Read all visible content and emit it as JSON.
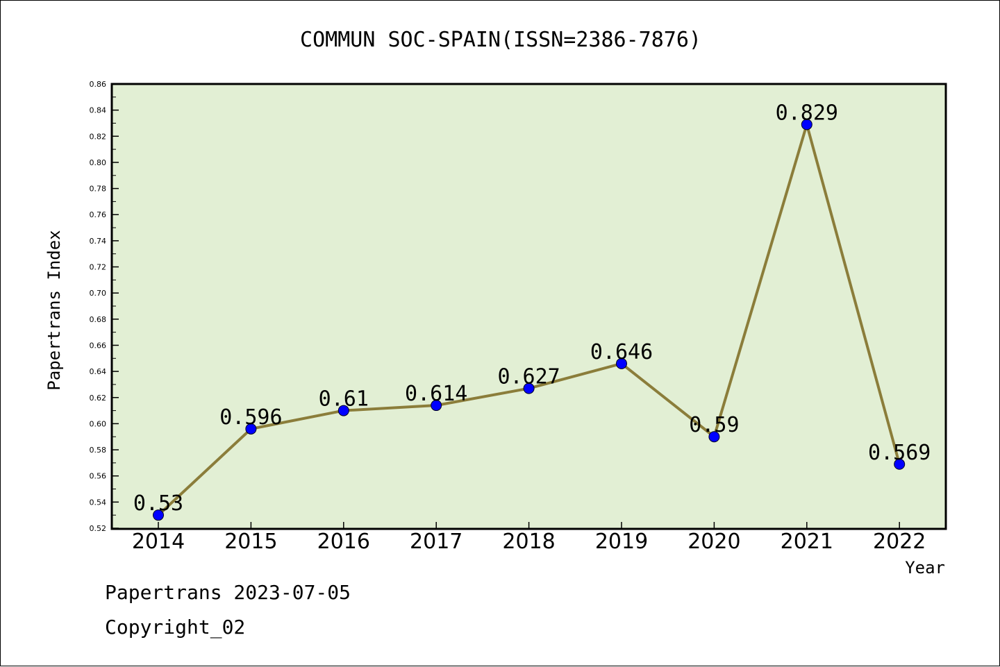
{
  "chart_data": {
    "type": "line",
    "title": "COMMUN SOC-SPAIN(ISSN=2386-7876)",
    "xlabel": "Year",
    "ylabel": "Papertrans Index",
    "categories": [
      "2014",
      "2015",
      "2016",
      "2017",
      "2018",
      "2019",
      "2020",
      "2021",
      "2022"
    ],
    "series": [
      {
        "values": [
          0.53,
          0.596,
          0.61,
          0.614,
          0.627,
          0.646,
          0.59,
          0.829,
          0.569
        ],
        "labels": [
          "0.53",
          "0.596",
          "0.61",
          "0.614",
          "0.627",
          "0.646",
          "0.59",
          "0.829",
          "0.569"
        ]
      }
    ],
    "ylim": [
      0.52,
      0.86
    ],
    "yticks": [
      "0.52",
      "0.54",
      "0.56",
      "0.58",
      "0.60",
      "0.62",
      "0.64",
      "0.66",
      "0.68",
      "0.70",
      "0.72",
      "0.74",
      "0.76",
      "0.78",
      "0.80",
      "0.82",
      "0.84",
      "0.86"
    ],
    "grid": false,
    "colors": {
      "plot_background": "#e2efd4",
      "line": "#8b7d3a",
      "marker": "#0000ff"
    }
  },
  "footer": {
    "line1": "Papertrans 2023-07-05",
    "line2": "Copyright_02"
  }
}
